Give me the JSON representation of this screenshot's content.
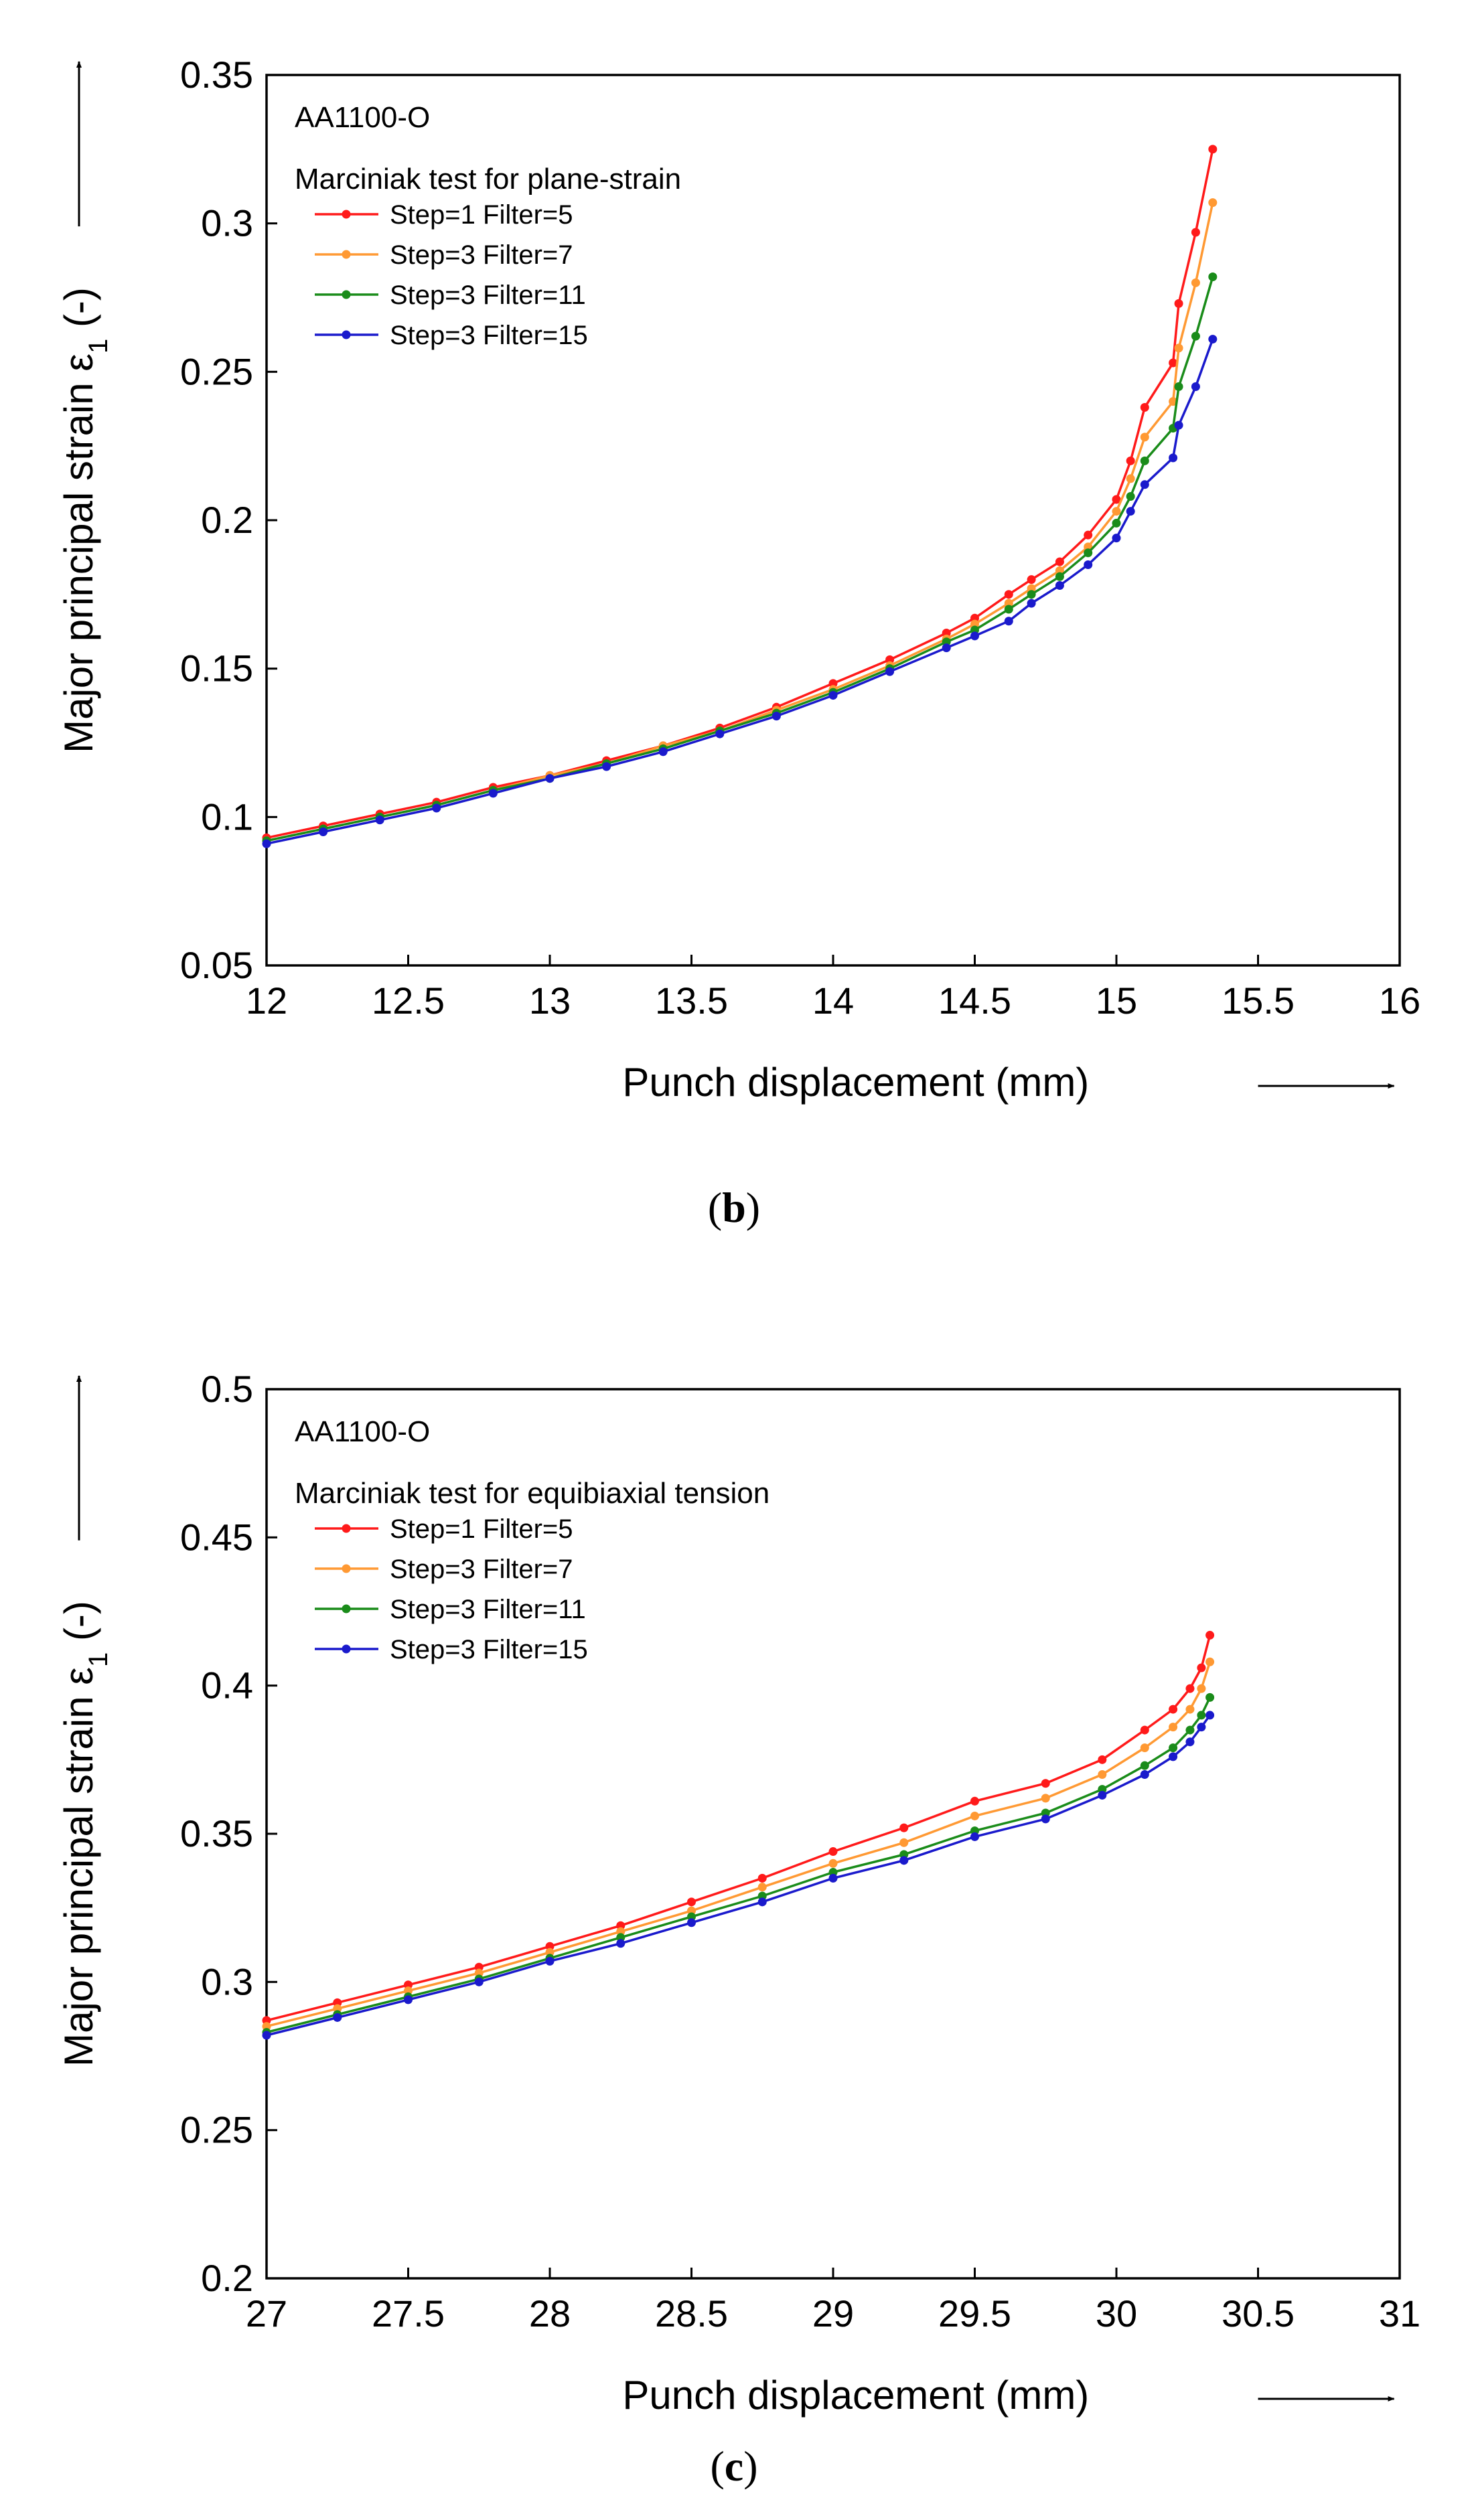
{
  "chart_data": [
    {
      "type": "line",
      "panel": "b",
      "panel_label_open": "(",
      "panel_label_letter": "b",
      "panel_label_close": ")",
      "annotations": [
        "AA1100-O",
        "Marciniak test for plane-strain"
      ],
      "xlabel": "Punch displacement (mm)",
      "ylabel": "Major principal strain ε",
      "ylabel_sub": "1",
      "ylabel_tail": " (-)",
      "xlim": [
        12,
        16
      ],
      "ylim": [
        0.05,
        0.35
      ],
      "xticks": [
        "12",
        "12.5",
        "13",
        "13.5",
        "14",
        "14.5",
        "15",
        "15.5",
        "16"
      ],
      "yticks": [
        "0.05",
        "0.1",
        "0.15",
        "0.2",
        "0.25",
        "0.3",
        "0.35"
      ],
      "legend_position": "top-left",
      "series": [
        {
          "name": "Step=1 Filter=5",
          "color": "#ff1a1a",
          "x": [
            12.0,
            12.2,
            12.4,
            12.6,
            12.8,
            13.0,
            13.2,
            13.4,
            13.6,
            13.8,
            14.0,
            14.2,
            14.4,
            14.5,
            14.62,
            14.7,
            14.8,
            14.9,
            15.0,
            15.05,
            15.1,
            15.2,
            15.22,
            15.28,
            15.34
          ],
          "y": [
            0.093,
            0.097,
            0.101,
            0.105,
            0.11,
            0.114,
            0.119,
            0.124,
            0.13,
            0.137,
            0.145,
            0.153,
            0.162,
            0.167,
            0.175,
            0.18,
            0.186,
            0.195,
            0.207,
            0.22,
            0.238,
            0.253,
            0.273,
            0.297,
            0.325
          ]
        },
        {
          "name": "Step=3 Filter=7",
          "color": "#ff9933",
          "x": [
            12.0,
            12.2,
            12.4,
            12.6,
            12.8,
            13.0,
            13.2,
            13.4,
            13.6,
            13.8,
            14.0,
            14.2,
            14.4,
            14.5,
            14.62,
            14.7,
            14.8,
            14.9,
            15.0,
            15.05,
            15.1,
            15.2,
            15.22,
            15.28,
            15.34
          ],
          "y": [
            0.092,
            0.096,
            0.1,
            0.104,
            0.109,
            0.114,
            0.118,
            0.124,
            0.129,
            0.136,
            0.143,
            0.151,
            0.16,
            0.165,
            0.172,
            0.177,
            0.183,
            0.191,
            0.203,
            0.214,
            0.228,
            0.24,
            0.258,
            0.28,
            0.307
          ]
        },
        {
          "name": "Step=3 Filter=11",
          "color": "#1a8c1a",
          "x": [
            12.0,
            12.2,
            12.4,
            12.6,
            12.8,
            13.0,
            13.2,
            13.4,
            13.6,
            13.8,
            14.0,
            14.2,
            14.4,
            14.5,
            14.62,
            14.7,
            14.8,
            14.9,
            15.0,
            15.05,
            15.1,
            15.2,
            15.22,
            15.28,
            15.34
          ],
          "y": [
            0.092,
            0.096,
            0.1,
            0.104,
            0.109,
            0.113,
            0.118,
            0.123,
            0.129,
            0.135,
            0.142,
            0.15,
            0.159,
            0.163,
            0.17,
            0.175,
            0.181,
            0.189,
            0.199,
            0.208,
            0.22,
            0.231,
            0.245,
            0.262,
            0.282
          ]
        },
        {
          "name": "Step=3 Filter=15",
          "color": "#1a1acc",
          "x": [
            12.0,
            12.2,
            12.4,
            12.6,
            12.8,
            13.0,
            13.2,
            13.4,
            13.6,
            13.8,
            14.0,
            14.2,
            14.4,
            14.5,
            14.62,
            14.7,
            14.8,
            14.9,
            15.0,
            15.05,
            15.1,
            15.2,
            15.22,
            15.28,
            15.34
          ],
          "y": [
            0.091,
            0.095,
            0.099,
            0.103,
            0.108,
            0.113,
            0.117,
            0.122,
            0.128,
            0.134,
            0.141,
            0.149,
            0.157,
            0.161,
            0.166,
            0.172,
            0.178,
            0.185,
            0.194,
            0.203,
            0.212,
            0.221,
            0.232,
            0.245,
            0.261
          ]
        }
      ]
    },
    {
      "type": "line",
      "panel": "c",
      "panel_label_open": "(",
      "panel_label_letter": "c",
      "panel_label_close": ")",
      "annotations": [
        "AA1100-O",
        "Marciniak test for equibiaxial tension"
      ],
      "xlabel": "Punch displacement (mm)",
      "ylabel": "Major principal strain ε",
      "ylabel_sub": "1",
      "ylabel_tail": " (-)",
      "xlim": [
        27,
        31
      ],
      "ylim": [
        0.2,
        0.5
      ],
      "xticks": [
        "27",
        "27.5",
        "28",
        "28.5",
        "29",
        "29.5",
        "30",
        "30.5",
        "31"
      ],
      "yticks": [
        "0.2",
        "0.25",
        "0.3",
        "0.35",
        "0.4",
        "0.45",
        "0.5"
      ],
      "legend_position": "top-left",
      "series": [
        {
          "name": "Step=1 Filter=5",
          "color": "#ff1a1a",
          "x": [
            27.0,
            27.25,
            27.5,
            27.75,
            28.0,
            28.25,
            28.5,
            28.75,
            29.0,
            29.25,
            29.5,
            29.75,
            29.95,
            30.1,
            30.2,
            30.26,
            30.3,
            30.33
          ],
          "y": [
            0.287,
            0.293,
            0.299,
            0.305,
            0.312,
            0.319,
            0.327,
            0.335,
            0.344,
            0.352,
            0.361,
            0.367,
            0.375,
            0.385,
            0.392,
            0.399,
            0.406,
            0.417
          ]
        },
        {
          "name": "Step=3 Filter=7",
          "color": "#ff9933",
          "x": [
            27.0,
            27.25,
            27.5,
            27.75,
            28.0,
            28.25,
            28.5,
            28.75,
            29.0,
            29.25,
            29.5,
            29.75,
            29.95,
            30.1,
            30.2,
            30.26,
            30.3,
            30.33
          ],
          "y": [
            0.285,
            0.291,
            0.297,
            0.303,
            0.31,
            0.317,
            0.324,
            0.332,
            0.34,
            0.347,
            0.356,
            0.362,
            0.37,
            0.379,
            0.386,
            0.392,
            0.399,
            0.408
          ]
        },
        {
          "name": "Step=3 Filter=11",
          "color": "#1a8c1a",
          "x": [
            27.0,
            27.25,
            27.5,
            27.75,
            28.0,
            28.25,
            28.5,
            28.75,
            29.0,
            29.25,
            29.5,
            29.75,
            29.95,
            30.1,
            30.2,
            30.26,
            30.3,
            30.33
          ],
          "y": [
            0.283,
            0.289,
            0.295,
            0.301,
            0.308,
            0.315,
            0.322,
            0.329,
            0.337,
            0.343,
            0.351,
            0.357,
            0.365,
            0.373,
            0.379,
            0.385,
            0.39,
            0.396
          ]
        },
        {
          "name": "Step=3 Filter=15",
          "color": "#1a1acc",
          "x": [
            27.0,
            27.25,
            27.5,
            27.75,
            28.0,
            28.25,
            28.5,
            28.75,
            29.0,
            29.25,
            29.5,
            29.75,
            29.95,
            30.1,
            30.2,
            30.26,
            30.3,
            30.33
          ],
          "y": [
            0.282,
            0.288,
            0.294,
            0.3,
            0.307,
            0.313,
            0.32,
            0.327,
            0.335,
            0.341,
            0.349,
            0.355,
            0.363,
            0.37,
            0.376,
            0.381,
            0.386,
            0.39
          ]
        }
      ]
    }
  ]
}
